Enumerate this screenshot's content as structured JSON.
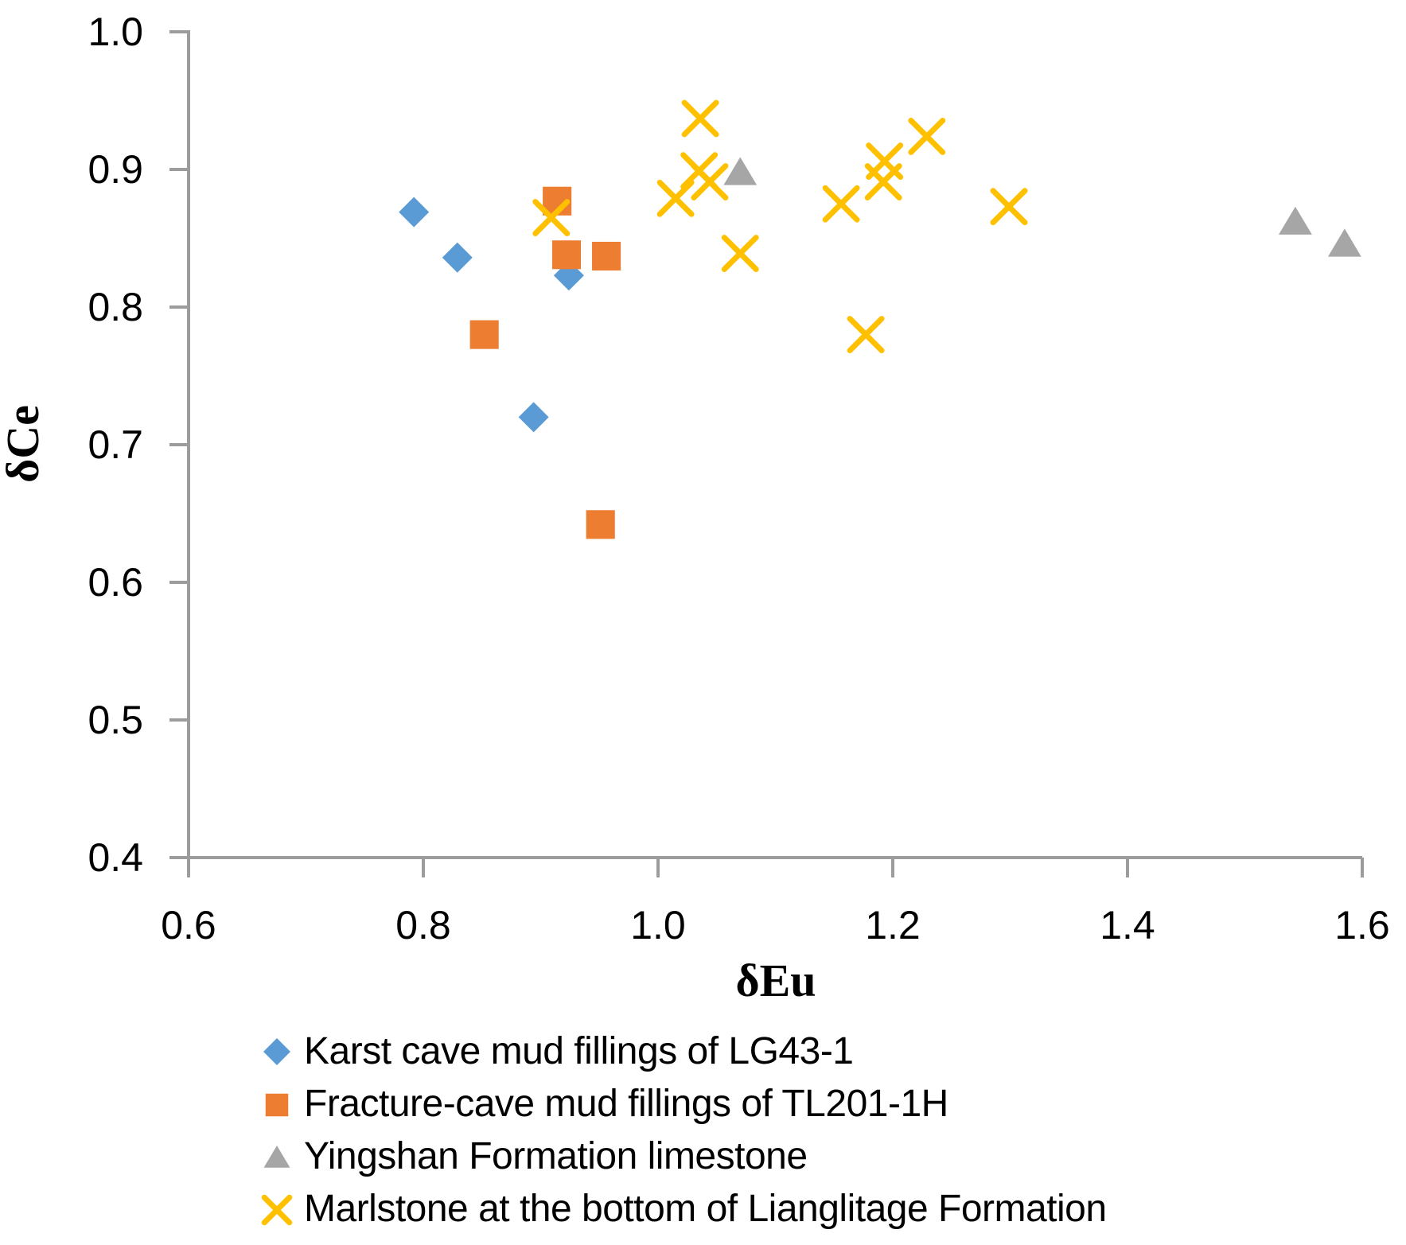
{
  "chart_data": {
    "type": "scatter",
    "title": "",
    "xlabel": "δEu",
    "ylabel": "δCe",
    "xlim": [
      0.6,
      1.6
    ],
    "ylim": [
      0.4,
      1.0
    ],
    "xticks": [
      0.6,
      0.8,
      1.0,
      1.2,
      1.4,
      1.6
    ],
    "yticks": [
      1.0,
      0.9,
      0.8,
      0.7,
      0.6,
      0.5,
      0.4
    ],
    "grid": false,
    "legend_position": "bottom-left",
    "axis_color": "#9C9C9C",
    "text_color": "#000000",
    "series": [
      {
        "name": "Karst cave mud fillings of LG43-1",
        "marker": "diamond",
        "color": "#5B9BD5",
        "points": [
          [
            0.792,
            0.869
          ],
          [
            0.829,
            0.836
          ],
          [
            0.924,
            0.823
          ],
          [
            0.894,
            0.72
          ]
        ]
      },
      {
        "name": "Fracture-cave mud fillings of TL201-1H",
        "marker": "square",
        "color": "#ED7D31",
        "points": [
          [
            0.914,
            0.877
          ],
          [
            0.922,
            0.838
          ],
          [
            0.956,
            0.837
          ],
          [
            0.852,
            0.78
          ],
          [
            0.951,
            0.642
          ]
        ]
      },
      {
        "name": "Yingshan Formation limestone",
        "marker": "triangle",
        "color": "#A6A6A6",
        "points": [
          [
            1.07,
            0.898
          ],
          [
            1.543,
            0.862
          ],
          [
            1.585,
            0.846
          ]
        ]
      },
      {
        "name": "Marlstone at the bottom of Lianglitage Formation",
        "marker": "x",
        "color": "#FFC000",
        "points": [
          [
            0.909,
            0.865
          ],
          [
            1.036,
            0.937
          ],
          [
            1.035,
            0.899
          ],
          [
            1.044,
            0.891
          ],
          [
            1.015,
            0.879
          ],
          [
            1.07,
            0.839
          ],
          [
            1.156,
            0.875
          ],
          [
            1.193,
            0.906
          ],
          [
            1.192,
            0.891
          ],
          [
            1.229,
            0.924
          ],
          [
            1.299,
            0.873
          ],
          [
            1.177,
            0.78
          ]
        ]
      }
    ]
  }
}
